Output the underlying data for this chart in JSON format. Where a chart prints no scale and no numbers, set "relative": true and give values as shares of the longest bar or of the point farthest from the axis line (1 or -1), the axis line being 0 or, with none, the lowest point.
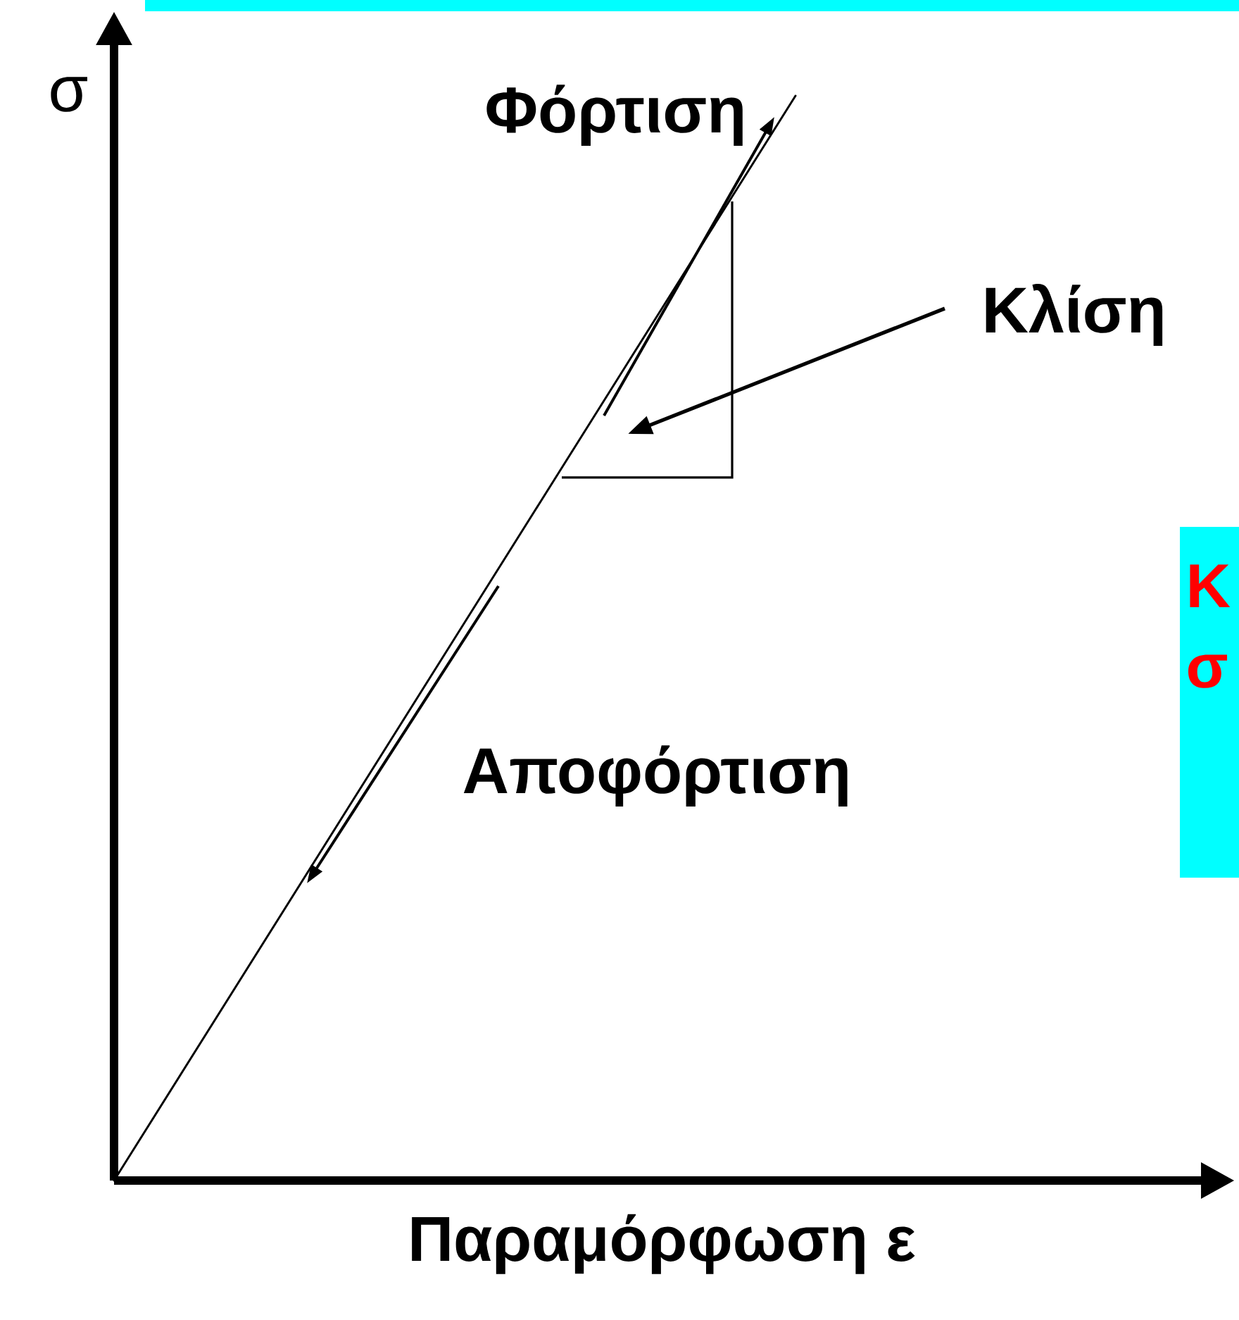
{
  "chart_data": {
    "type": "line",
    "relative": true,
    "categories": [
      null,
      null,
      null,
      null,
      null
    ],
    "values": [
      0,
      0.25,
      0.5,
      0.75,
      1
    ],
    "color": "#000000",
    "xlabel": "Παραμόρφωση ε",
    "ylabel": "σ",
    "annotations": [
      "Φόρτιση",
      "Κλίση",
      "Αποφόρτιση",
      "Κ",
      "σ"
    ]
  }
}
